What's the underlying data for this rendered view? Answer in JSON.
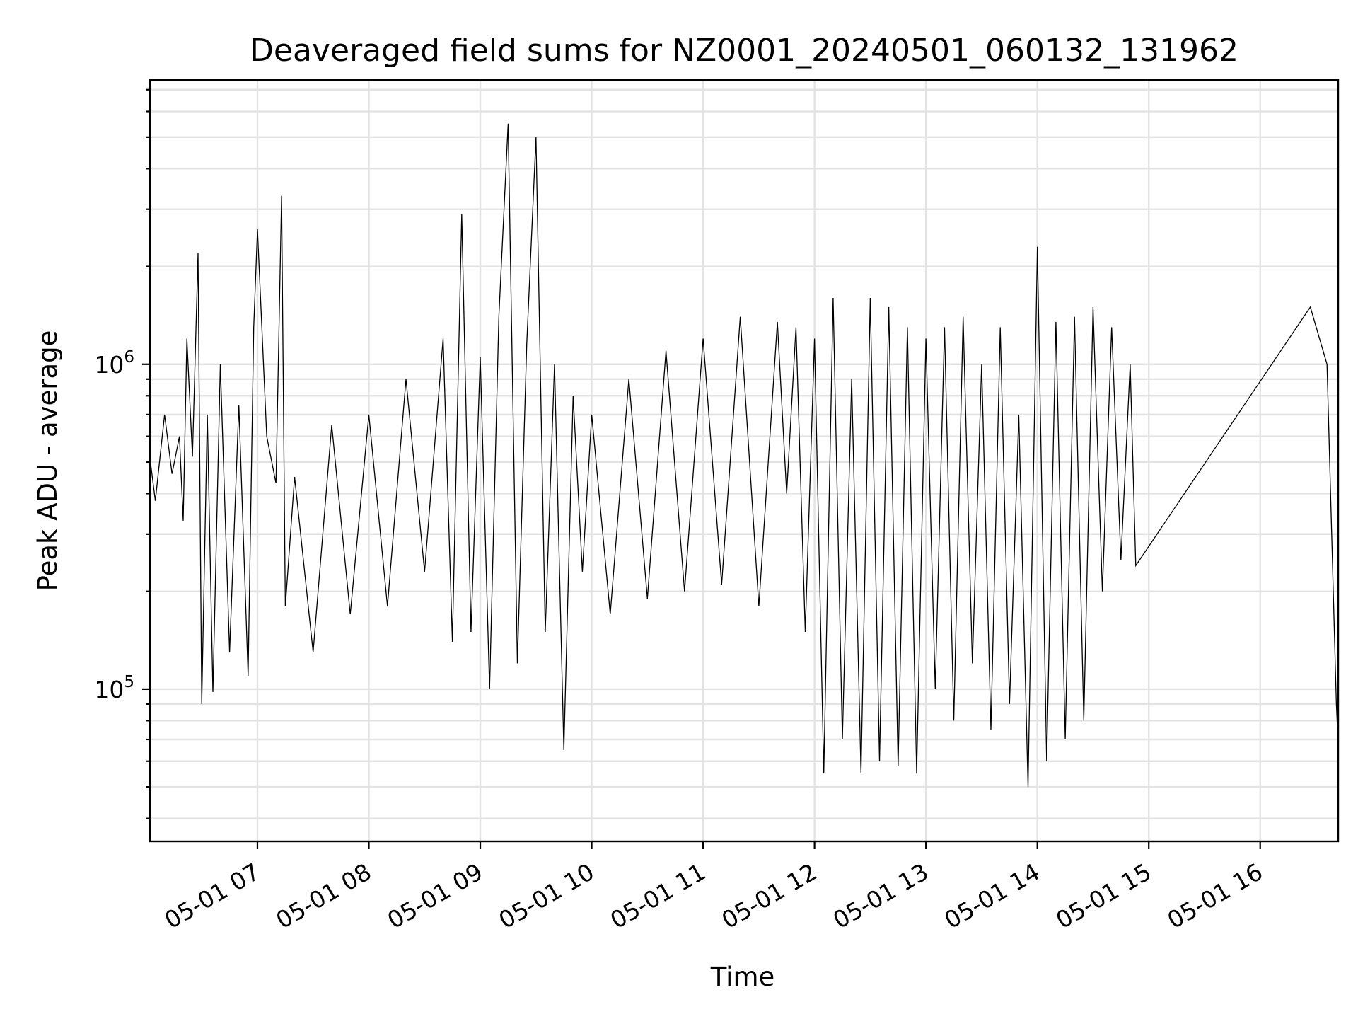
{
  "chart_data": {
    "type": "line",
    "title": "Deaveraged field sums for NZ0001_20240501_060132_131962",
    "xlabel": "Time",
    "ylabel": "Peak ADU - average",
    "yscale": "log",
    "grid": "on",
    "ylim": [
      34000,
      7500000
    ],
    "xlim": [
      "05-01 06:02:07",
      "05-01 16:42:00"
    ],
    "x_ticks": [
      {
        "value": "05-01 07:00",
        "label": "05-01 07"
      },
      {
        "value": "05-01 08:00",
        "label": "05-01 08"
      },
      {
        "value": "05-01 09:00",
        "label": "05-01 09"
      },
      {
        "value": "05-01 10:00",
        "label": "05-01 10"
      },
      {
        "value": "05-01 11:00",
        "label": "05-01 11"
      },
      {
        "value": "05-01 12:00",
        "label": "05-01 12"
      },
      {
        "value": "05-01 13:00",
        "label": "05-01 13"
      },
      {
        "value": "05-01 14:00",
        "label": "05-01 14"
      },
      {
        "value": "05-01 15:00",
        "label": "05-01 15"
      },
      {
        "value": "05-01 16:00",
        "label": "05-01 16"
      }
    ],
    "y_ticks": [
      {
        "value": 100000,
        "base": "10",
        "exp": "5"
      },
      {
        "value": 1000000,
        "base": "10",
        "exp": "6"
      }
    ],
    "series": [
      {
        "color": "#000000",
        "x": [
          "05-01 06:02",
          "05-01 06:05",
          "05-01 06:10",
          "05-01 06:14",
          "05-01 06:18",
          "05-01 06:20",
          "05-01 06:22",
          "05-01 06:25",
          "05-01 06:28",
          "05-01 06:30",
          "05-01 06:33",
          "05-01 06:36",
          "05-01 06:40",
          "05-01 06:45",
          "05-01 06:50",
          "05-01 06:55",
          "05-01 06:58",
          "05-01 07:00",
          "05-01 07:05",
          "05-01 07:10",
          "05-01 07:13",
          "05-01 07:15",
          "05-01 07:20",
          "05-01 07:30",
          "05-01 07:40",
          "05-01 07:50",
          "05-01 08:00",
          "05-01 08:10",
          "05-01 08:20",
          "05-01 08:30",
          "05-01 08:40",
          "05-01 08:45",
          "05-01 08:50",
          "05-01 08:55",
          "05-01 09:00",
          "05-01 09:05",
          "05-01 09:10",
          "05-01 09:15",
          "05-01 09:20",
          "05-01 09:25",
          "05-01 09:30",
          "05-01 09:35",
          "05-01 09:40",
          "05-01 09:45",
          "05-01 09:50",
          "05-01 09:55",
          "05-01 10:00",
          "05-01 10:10",
          "05-01 10:20",
          "05-01 10:30",
          "05-01 10:40",
          "05-01 10:50",
          "05-01 11:00",
          "05-01 11:10",
          "05-01 11:20",
          "05-01 11:30",
          "05-01 11:40",
          "05-01 11:45",
          "05-01 11:50",
          "05-01 11:55",
          "05-01 12:00",
          "05-01 12:05",
          "05-01 12:10",
          "05-01 12:15",
          "05-01 12:20",
          "05-01 12:25",
          "05-01 12:30",
          "05-01 12:35",
          "05-01 12:40",
          "05-01 12:45",
          "05-01 12:50",
          "05-01 12:55",
          "05-01 13:00",
          "05-01 13:05",
          "05-01 13:10",
          "05-01 13:15",
          "05-01 13:20",
          "05-01 13:25",
          "05-01 13:30",
          "05-01 13:35",
          "05-01 13:40",
          "05-01 13:45",
          "05-01 13:50",
          "05-01 13:55",
          "05-01 14:00",
          "05-01 14:05",
          "05-01 14:10",
          "05-01 14:15",
          "05-01 14:20",
          "05-01 14:25",
          "05-01 14:30",
          "05-01 14:35",
          "05-01 14:40",
          "05-01 14:45",
          "05-01 14:50",
          "05-01 14:53",
          "05-01 16:27",
          "05-01 16:36",
          "05-01 16:41",
          "05-01 16:42"
        ],
        "y": [
          520000,
          380000,
          700000,
          460000,
          600000,
          330000,
          1200000,
          520000,
          2200000,
          90000,
          700000,
          98000,
          1000000,
          130000,
          750000,
          110000,
          1300000,
          2600000,
          600000,
          430000,
          3300000,
          180000,
          450000,
          130000,
          650000,
          170000,
          700000,
          180000,
          900000,
          230000,
          1200000,
          140000,
          2900000,
          150000,
          1050000,
          100000,
          1400000,
          5500000,
          120000,
          1150000,
          5000000,
          150000,
          1000000,
          65000,
          800000,
          230000,
          700000,
          170000,
          900000,
          190000,
          1100000,
          200000,
          1200000,
          210000,
          1400000,
          180000,
          1350000,
          400000,
          1300000,
          150000,
          1200000,
          55000,
          1600000,
          70000,
          900000,
          55000,
          1600000,
          60000,
          1500000,
          58000,
          1300000,
          55000,
          1200000,
          100000,
          1300000,
          80000,
          1400000,
          120000,
          1000000,
          75000,
          1300000,
          90000,
          700000,
          50000,
          2300000,
          60000,
          1350000,
          70000,
          1400000,
          80000,
          1500000,
          200000,
          1300000,
          250000,
          1000000,
          240000,
          1500000,
          1000000,
          90000,
          68000
        ]
      }
    ]
  }
}
